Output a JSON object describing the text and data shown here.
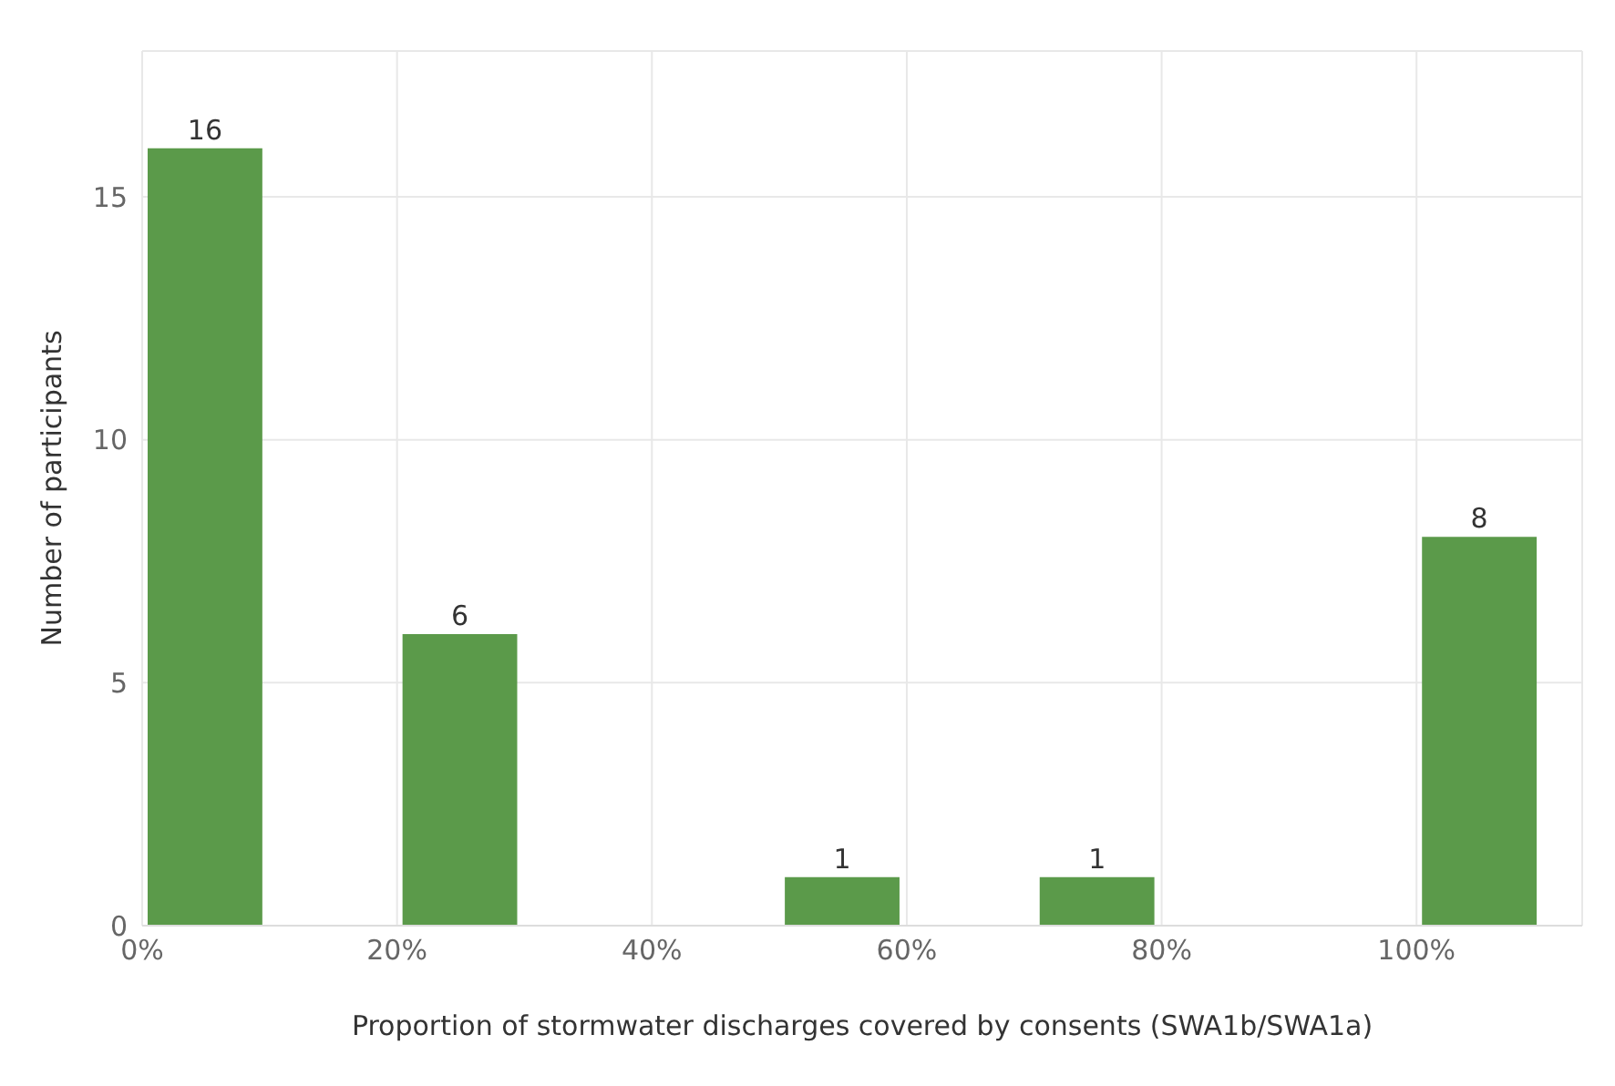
{
  "chart_data": {
    "type": "histogram",
    "xlabel": "Proportion of stormwater discharges covered by consents (SWA1b/SWA1a)",
    "ylabel": "Number of participants",
    "bins": [
      0,
      10,
      20,
      30,
      40,
      50,
      60,
      70,
      80,
      90,
      100,
      110
    ],
    "values": [
      16,
      0,
      6,
      0,
      0,
      1,
      0,
      1,
      0,
      0,
      8
    ],
    "value_labels": [
      "16",
      null,
      "6",
      null,
      null,
      "1",
      null,
      "1",
      null,
      null,
      "8"
    ],
    "color": "#5b9a4a",
    "xlim": [
      0,
      113
    ],
    "xticks": [
      {
        "value": 0,
        "label": "0%"
      },
      {
        "value": 20,
        "label": "20%"
      },
      {
        "value": 40,
        "label": "40%"
      },
      {
        "value": 60,
        "label": "60%"
      },
      {
        "value": 80,
        "label": "80%"
      },
      {
        "value": 100,
        "label": "100%"
      }
    ],
    "ylim": [
      0,
      18
    ],
    "yticks": [
      0,
      5,
      10,
      15
    ],
    "grid": true
  }
}
